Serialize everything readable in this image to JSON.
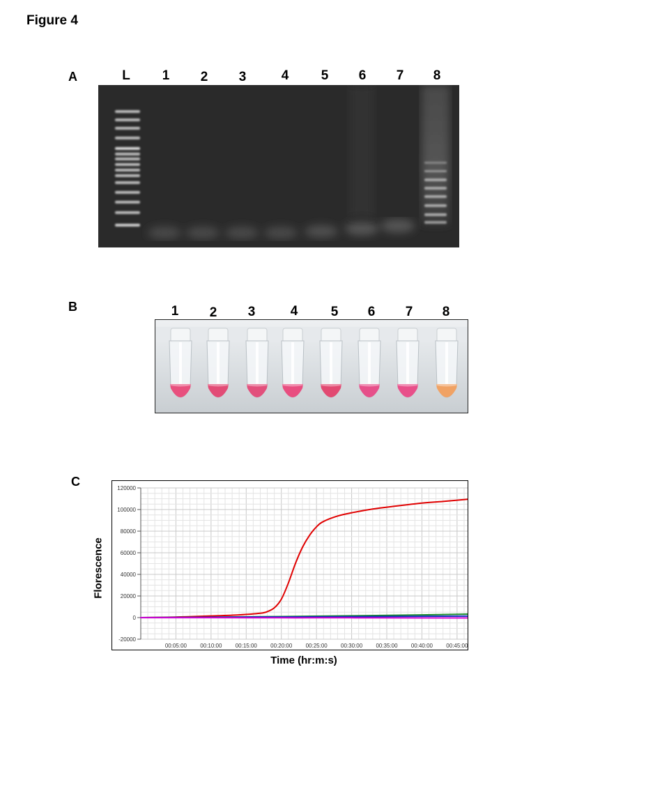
{
  "figure_title": "Figure 4",
  "panels": {
    "a": {
      "letter": "A",
      "lanes": [
        "L",
        "1",
        "2",
        "3",
        "4",
        "5",
        "6",
        "7",
        "8"
      ]
    },
    "b": {
      "letter": "B",
      "tubes": [
        "1",
        "2",
        "3",
        "4",
        "5",
        "6",
        "7",
        "8"
      ],
      "tube_colors": [
        "#e8507e",
        "#e24c76",
        "#e2507c",
        "#e84e80",
        "#e24a72",
        "#e6508a",
        "#e8508a",
        "#f0a264"
      ]
    },
    "c": {
      "letter": "C"
    }
  },
  "chart_data": {
    "type": "line",
    "xlabel": "Time (hr:m:s)",
    "ylabel": "Florescence",
    "x_unit": "minutes",
    "xlim": [
      0,
      46.5
    ],
    "ylim": [
      -20000,
      120000
    ],
    "y_ticks": [
      "-20000",
      "0",
      "20000",
      "40000",
      "60000",
      "80000",
      "100000",
      "120000"
    ],
    "y_tick_values": [
      -20000,
      0,
      20000,
      40000,
      60000,
      80000,
      100000,
      120000
    ],
    "x_ticks": [
      "00:05:00",
      "00:10:00",
      "00:15:00",
      "00:20:00",
      "00:25:00",
      "00:30:00",
      "00:35:00",
      "00:40:00",
      "00:45:00"
    ],
    "x_tick_values": [
      5,
      10,
      15,
      20,
      25,
      30,
      35,
      40,
      45
    ],
    "grid": true,
    "series": [
      {
        "color": "#e00000",
        "x": [
          0,
          5,
          10,
          14,
          17,
          18,
          19,
          20,
          21,
          22,
          23,
          24,
          25,
          26,
          28,
          30,
          33,
          36,
          40,
          43,
          46.5
        ],
        "y": [
          0,
          500,
          1500,
          2500,
          4000,
          5500,
          9000,
          17000,
          32000,
          50000,
          65000,
          76000,
          84000,
          89000,
          94000,
          97000,
          100500,
          103000,
          106000,
          107500,
          109500
        ]
      },
      {
        "color": "#1a8a2a",
        "x": [
          0,
          10,
          20,
          30,
          40,
          46.5
        ],
        "y": [
          0,
          400,
          1000,
          1700,
          2500,
          3200
        ]
      },
      {
        "color": "#1030c0",
        "x": [
          0,
          10,
          20,
          30,
          40,
          46.5
        ],
        "y": [
          0,
          300,
          600,
          900,
          1200,
          1400
        ]
      },
      {
        "color": "#d000d0",
        "x": [
          0,
          10,
          20,
          30,
          40,
          46.5
        ],
        "y": [
          -100,
          -100,
          -200,
          -200,
          -300,
          -300
        ]
      }
    ]
  }
}
